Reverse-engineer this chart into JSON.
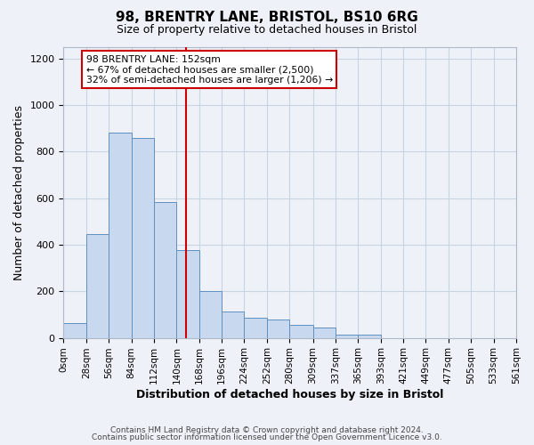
{
  "title": "98, BRENTRY LANE, BRISTOL, BS10 6RG",
  "subtitle": "Size of property relative to detached houses in Bristol",
  "xlabel": "Distribution of detached houses by size in Bristol",
  "ylabel": "Number of detached properties",
  "bin_edges": [
    0,
    28,
    56,
    84,
    112,
    140,
    168,
    196,
    224,
    252,
    280,
    309,
    337,
    365,
    393,
    421,
    449,
    477,
    505,
    533,
    561
  ],
  "bin_labels": [
    "0sqm",
    "28sqm",
    "56sqm",
    "84sqm",
    "112sqm",
    "140sqm",
    "168sqm",
    "196sqm",
    "224sqm",
    "252sqm",
    "280sqm",
    "309sqm",
    "337sqm",
    "365sqm",
    "393sqm",
    "421sqm",
    "449sqm",
    "477sqm",
    "505sqm",
    "533sqm",
    "561sqm"
  ],
  "counts": [
    65,
    445,
    880,
    860,
    585,
    375,
    200,
    115,
    85,
    80,
    55,
    45,
    15,
    15,
    0,
    0,
    0,
    0,
    0,
    0
  ],
  "bar_facecolor": "#c8d8ee",
  "bar_edgecolor": "#6090c0",
  "grid_color": "#c8d4e4",
  "background_color": "#eef2f8",
  "plot_background": "#eef2f8",
  "vline_x": 152,
  "vline_color": "#cc0000",
  "annotation_title": "98 BRENTRY LANE: 152sqm",
  "annotation_line1": "← 67% of detached houses are smaller (2,500)",
  "annotation_line2": "32% of semi-detached houses are larger (1,206) →",
  "annotation_box_edgecolor": "#cc0000",
  "annotation_box_facecolor": "#ffffff",
  "ylim": [
    0,
    1250
  ],
  "yticks": [
    0,
    200,
    400,
    600,
    800,
    1000,
    1200
  ],
  "footer1": "Contains HM Land Registry data © Crown copyright and database right 2024.",
  "footer2": "Contains public sector information licensed under the Open Government Licence v3.0."
}
